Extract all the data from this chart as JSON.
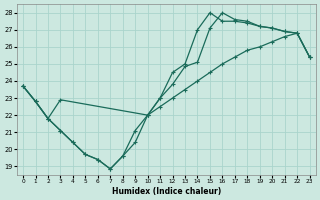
{
  "xlabel": "Humidex (Indice chaleur)",
  "xlim": [
    -0.5,
    23.5
  ],
  "ylim": [
    18.5,
    28.5
  ],
  "xticks": [
    0,
    1,
    2,
    3,
    4,
    5,
    6,
    7,
    8,
    9,
    10,
    11,
    12,
    13,
    14,
    15,
    16,
    17,
    18,
    19,
    20,
    21,
    22,
    23
  ],
  "yticks": [
    19,
    20,
    21,
    22,
    23,
    24,
    25,
    26,
    27,
    28
  ],
  "bg_color": "#cce8e0",
  "grid_color": "#aad4cc",
  "line_color": "#1a6b5a",
  "line1_x": [
    0,
    1,
    2,
    3,
    4,
    5,
    6,
    7,
    8,
    9,
    10,
    11,
    12,
    13,
    14,
    15,
    16,
    17,
    18,
    19,
    20,
    21,
    22,
    23
  ],
  "line1_y": [
    23.7,
    22.8,
    21.8,
    21.1,
    20.4,
    19.7,
    19.4,
    18.85,
    19.6,
    20.4,
    22.0,
    23.0,
    23.8,
    24.85,
    25.1,
    27.1,
    28.0,
    27.6,
    27.5,
    27.2,
    27.1,
    26.9,
    26.8,
    25.4
  ],
  "line2_x": [
    0,
    1,
    2,
    3,
    10,
    11,
    12,
    13,
    14,
    15,
    16,
    17,
    18,
    19,
    20,
    21,
    22,
    23
  ],
  "line2_y": [
    23.7,
    22.8,
    21.8,
    22.9,
    22.0,
    22.5,
    23.0,
    23.5,
    24.0,
    24.5,
    25.0,
    25.4,
    25.8,
    26.0,
    26.3,
    26.6,
    26.8,
    25.4
  ],
  "line3_x": [
    0,
    1,
    2,
    3,
    4,
    5,
    6,
    7,
    8,
    9,
    10,
    11,
    12,
    13,
    14,
    15,
    16,
    17,
    18,
    19,
    20,
    21,
    22,
    23
  ],
  "line3_y": [
    23.7,
    22.8,
    21.8,
    21.1,
    20.4,
    19.7,
    19.4,
    18.85,
    19.6,
    21.1,
    22.0,
    23.0,
    24.5,
    25.0,
    27.0,
    28.0,
    27.5,
    27.5,
    27.4,
    27.2,
    27.1,
    26.9,
    26.8,
    25.4
  ]
}
